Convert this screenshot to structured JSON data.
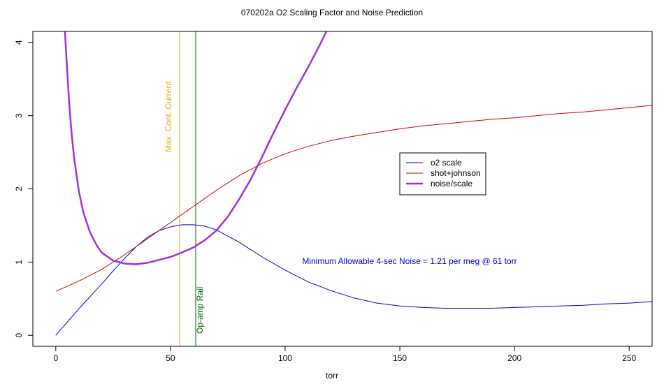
{
  "chart_data": {
    "type": "line",
    "title": "070202a   O2 Scaling Factor and Noise Prediction",
    "xlabel": "torr",
    "ylabel": "",
    "xlim": [
      -10,
      260
    ],
    "ylim": [
      -0.15,
      4.15
    ],
    "xticks": [
      0,
      50,
      100,
      150,
      200,
      250
    ],
    "yticks": [
      0,
      1,
      2,
      3,
      4
    ],
    "grid": false,
    "legend_position": "center-right",
    "series": [
      {
        "name": "o2 scale",
        "color": "#0000cc",
        "width": 1,
        "x": [
          0,
          5,
          10,
          15,
          20,
          25,
          30,
          35,
          40,
          45,
          50,
          55,
          60,
          65,
          70,
          80,
          90,
          100,
          110,
          120,
          130,
          140,
          150,
          160,
          170,
          180,
          190,
          200,
          210,
          220,
          230,
          240,
          250,
          260
        ],
        "y": [
          0.0,
          0.18,
          0.36,
          0.53,
          0.7,
          0.88,
          1.05,
          1.21,
          1.34,
          1.43,
          1.48,
          1.51,
          1.51,
          1.49,
          1.44,
          1.27,
          1.07,
          0.89,
          0.73,
          0.61,
          0.51,
          0.44,
          0.4,
          0.38,
          0.37,
          0.37,
          0.37,
          0.38,
          0.39,
          0.4,
          0.41,
          0.43,
          0.44,
          0.46
        ]
      },
      {
        "name": "shot+johnson",
        "color": "#cc0000",
        "width": 1,
        "x": [
          0,
          10,
          20,
          30,
          40,
          50,
          60,
          70,
          80,
          90,
          100,
          110,
          120,
          130,
          140,
          150,
          160,
          170,
          180,
          190,
          200,
          210,
          220,
          230,
          240,
          250,
          260
        ],
        "y": [
          0.6,
          0.74,
          0.9,
          1.1,
          1.32,
          1.54,
          1.76,
          1.98,
          2.18,
          2.35,
          2.48,
          2.58,
          2.66,
          2.72,
          2.77,
          2.82,
          2.86,
          2.89,
          2.92,
          2.95,
          2.97,
          3.0,
          3.03,
          3.05,
          3.08,
          3.11,
          3.14
        ]
      },
      {
        "name": "noise/scale",
        "color": "#9b30e0",
        "width": 2.5,
        "x": [
          4,
          5,
          6,
          7,
          8,
          10,
          12,
          15,
          18,
          20,
          25,
          30,
          35,
          40,
          45,
          50,
          55,
          60,
          65,
          70,
          75,
          80,
          85,
          90,
          95,
          100,
          105,
          110,
          115,
          118
        ],
        "y": [
          4.15,
          3.6,
          3.1,
          2.72,
          2.42,
          1.98,
          1.68,
          1.4,
          1.22,
          1.13,
          1.02,
          0.98,
          0.97,
          0.99,
          1.03,
          1.07,
          1.13,
          1.2,
          1.3,
          1.43,
          1.62,
          1.86,
          2.13,
          2.44,
          2.77,
          3.08,
          3.38,
          3.66,
          3.96,
          4.15
        ]
      }
    ],
    "vlines": [
      {
        "x": 54,
        "color": "#ffa500",
        "label": "Max. Cont. Current"
      },
      {
        "x": 61,
        "color": "#006400",
        "label": "Op-amp Rail"
      }
    ],
    "annotation": {
      "text": "Minimum Allowable 4-sec Noise =  1.21  per meg @  61  torr",
      "color": "#0000cc"
    }
  }
}
